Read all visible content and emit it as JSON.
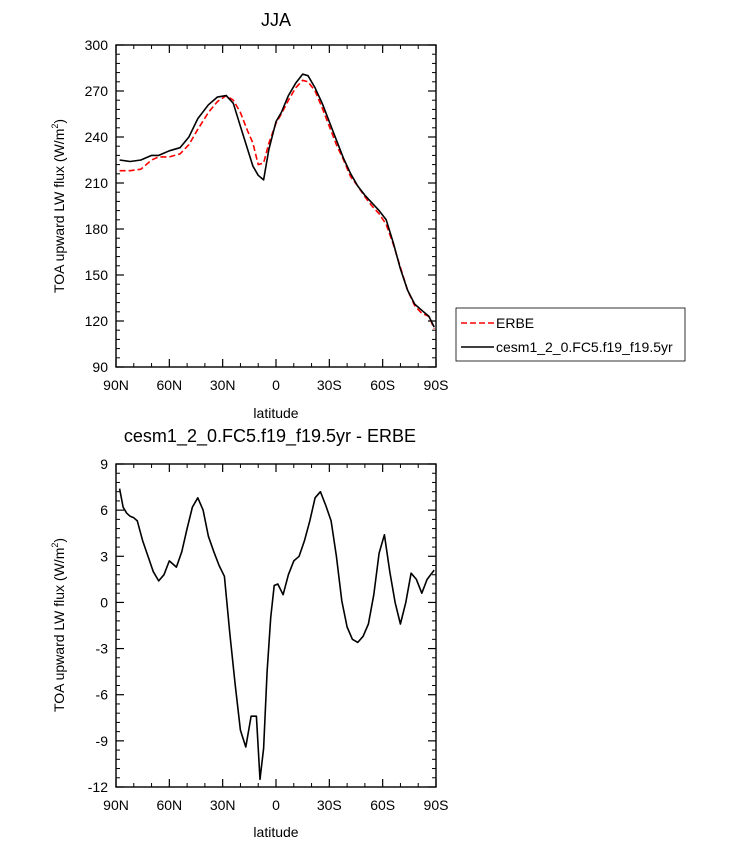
{
  "chart_data": [
    {
      "type": "line",
      "title": "JJA",
      "xlabel": "latitude",
      "ylabel": "TOA upward LW flux (W/m",
      "ylabel_sup": "2",
      "ylabel_end": ")",
      "xlim": [
        -90,
        90
      ],
      "ylim": [
        90,
        300
      ],
      "x_ticks": [
        -90,
        -60,
        -30,
        0,
        30,
        60,
        90
      ],
      "x_tick_labels": [
        "90N",
        "60N",
        "30N",
        "0",
        "30S",
        "60S",
        "90S"
      ],
      "y_ticks": [
        90,
        120,
        150,
        180,
        210,
        240,
        270,
        300
      ],
      "y_tick_labels": [
        "90",
        "120",
        "150",
        "180",
        "210",
        "240",
        "270",
        "300"
      ],
      "grid": false,
      "legend_position": "right",
      "series": [
        {
          "name": "ERBE",
          "color": "#ff0000",
          "dash": "dashed",
          "x": [
            -88,
            -82,
            -76,
            -70,
            -66,
            -60,
            -54,
            -49,
            -44,
            -38,
            -33,
            -28,
            -24,
            -20,
            -16,
            -13,
            -10,
            -7,
            -4,
            0,
            3,
            7,
            11,
            15,
            18,
            22,
            26,
            30,
            34,
            38,
            42,
            46,
            50,
            54,
            58,
            62,
            66,
            70,
            74,
            78,
            82,
            86,
            89
          ],
          "y": [
            218,
            218,
            219,
            225,
            227,
            227,
            229,
            235,
            245,
            256,
            263,
            267,
            264,
            256,
            244,
            236,
            222,
            223,
            236,
            249,
            255,
            264,
            272,
            277,
            276,
            270,
            259,
            247,
            235,
            225,
            214,
            208,
            201,
            195,
            190,
            183,
            170,
            155,
            140,
            130,
            125,
            123,
            115
          ]
        },
        {
          "name": "cesm1_2_0.FC5.f19_f19.5yr",
          "color": "#000000",
          "dash": "solid",
          "x": [
            -88,
            -82,
            -76,
            -70,
            -66,
            -60,
            -54,
            -49,
            -44,
            -38,
            -33,
            -28,
            -24,
            -20,
            -16,
            -13,
            -10,
            -7,
            -4,
            0,
            3,
            7,
            11,
            15,
            18,
            22,
            26,
            30,
            34,
            38,
            42,
            46,
            50,
            54,
            58,
            62,
            66,
            70,
            74,
            78,
            82,
            86,
            89
          ],
          "y": [
            225,
            224,
            225,
            228,
            228,
            231,
            233,
            240,
            252,
            261,
            266,
            267,
            262,
            247,
            232,
            221,
            215,
            212,
            232,
            250,
            256,
            267,
            275,
            281,
            280,
            272,
            262,
            250,
            238,
            226,
            216,
            208,
            202,
            197,
            192,
            186,
            171,
            154,
            140,
            131,
            127,
            123,
            116
          ]
        }
      ]
    },
    {
      "type": "line",
      "title": "cesm1_2_0.FC5.f19_f19.5yr - ERBE",
      "xlabel": "latitude",
      "ylabel": "TOA upward LW flux (W/m",
      "ylabel_sup": "2",
      "ylabel_end": ")",
      "xlim": [
        -90,
        90
      ],
      "ylim": [
        -12,
        9
      ],
      "x_ticks": [
        -90,
        -60,
        -30,
        0,
        30,
        60,
        90
      ],
      "x_tick_labels": [
        "90N",
        "60N",
        "30N",
        "0",
        "30S",
        "60S",
        "90S"
      ],
      "y_ticks": [
        -12,
        -9,
        -6,
        -3,
        0,
        3,
        6,
        9
      ],
      "y_tick_labels": [
        "-12",
        "-9",
        "-6",
        "-3",
        "0",
        "3",
        "6",
        "9"
      ],
      "grid": false,
      "series": [
        {
          "color": "#000000",
          "dash": "solid",
          "x": [
            -88,
            -86,
            -84,
            -82,
            -80,
            -78,
            -75,
            -72,
            -69,
            -66,
            -63,
            -60,
            -56,
            -53,
            -50,
            -47,
            -44,
            -41,
            -38,
            -35,
            -32,
            -29,
            -26,
            -23,
            -20,
            -17,
            -14,
            -11,
            -9,
            -7,
            -5,
            -3,
            -1,
            1,
            4,
            7,
            10,
            13,
            16,
            19,
            22,
            25,
            28,
            31,
            34,
            37,
            40,
            43,
            46,
            49,
            52,
            55,
            58,
            61,
            64,
            67,
            70,
            73,
            76,
            79,
            82,
            85,
            89
          ],
          "y": [
            7.4,
            6.2,
            5.8,
            5.6,
            5.5,
            5.3,
            4.0,
            3.0,
            2.0,
            1.4,
            1.8,
            2.7,
            2.3,
            3.3,
            4.8,
            6.2,
            6.8,
            6.0,
            4.3,
            3.3,
            2.4,
            1.7,
            -2.0,
            -5.3,
            -8.3,
            -9.4,
            -7.4,
            -7.4,
            -11.5,
            -9.5,
            -4.5,
            -1.0,
            1.1,
            1.2,
            0.5,
            1.8,
            2.7,
            3.0,
            4.0,
            5.3,
            6.8,
            7.2,
            6.3,
            5.3,
            3.0,
            0.1,
            -1.6,
            -2.4,
            -2.6,
            -2.2,
            -1.4,
            0.5,
            3.2,
            4.4,
            2.0,
            0.0,
            -1.4,
            0.0,
            1.9,
            1.5,
            0.6,
            1.5,
            2.1
          ]
        }
      ]
    }
  ],
  "legend": {
    "items": [
      {
        "label": "ERBE"
      },
      {
        "label": "cesm1_2_0.FC5.f19_f19.5yr"
      }
    ]
  }
}
